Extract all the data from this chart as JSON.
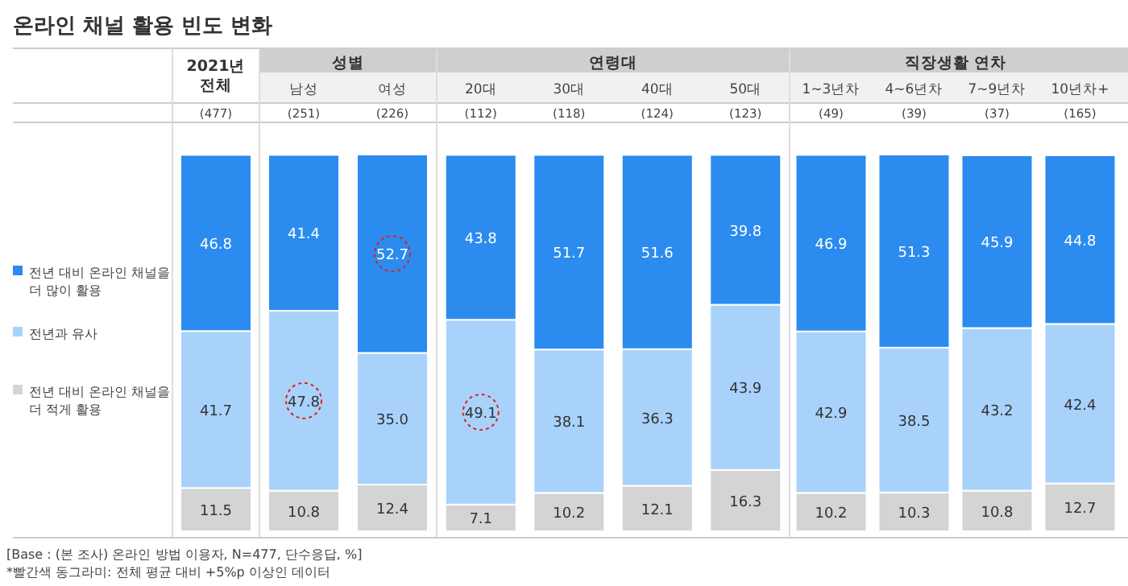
{
  "chart_data": {
    "type": "bar",
    "stacked": true,
    "title": "온라인 채널 활용 빈도 변화",
    "categories": [
      "2021년 전체",
      "남성",
      "여성",
      "20대",
      "30대",
      "40대",
      "50대",
      "1~3년차",
      "4~6년차",
      "7~9년차",
      "10년차+"
    ],
    "series": [
      {
        "name": "전년 대비 온라인 채널을 더 적게 활용",
        "color": "#d4d4d4",
        "values": [
          11.5,
          10.8,
          12.4,
          7.1,
          10.2,
          12.1,
          16.3,
          10.2,
          10.3,
          10.8,
          12.7
        ]
      },
      {
        "name": "전년과 유사",
        "color": "#a9d2fb",
        "values": [
          41.7,
          47.8,
          35.0,
          49.1,
          38.1,
          36.3,
          43.9,
          42.9,
          38.5,
          43.2,
          42.4
        ],
        "value_labels": [
          "41.7",
          "47.8",
          "35.0",
          "49.1",
          "38.1",
          "36.3",
          "43.9",
          "42.9",
          "38.5",
          "43.2",
          "42.4"
        ]
      },
      {
        "name": "전년 대비 온라인 채널을 더 많이 활용",
        "color": "#2b8bef",
        "values": [
          46.8,
          41.4,
          52.7,
          43.8,
          51.7,
          51.6,
          39.8,
          46.9,
          51.3,
          45.9,
          44.8
        ]
      }
    ],
    "data_labels": true,
    "legend": "left",
    "annotations": [
      "성별",
      "연령대",
      "직장생활 연차",
      "(477)",
      "(251)",
      "(226)",
      "(112)",
      "(118)",
      "(124)",
      "(123)",
      "(49)",
      "(39)",
      "(37)",
      "(165)",
      "[Base : (본 조사) 온라인 방법 이용자, N=477, 단수응답, %]",
      "*빨간색 동그라미: 전체 평균 대비 +5%p 이상인 데이터"
    ]
  }
}
